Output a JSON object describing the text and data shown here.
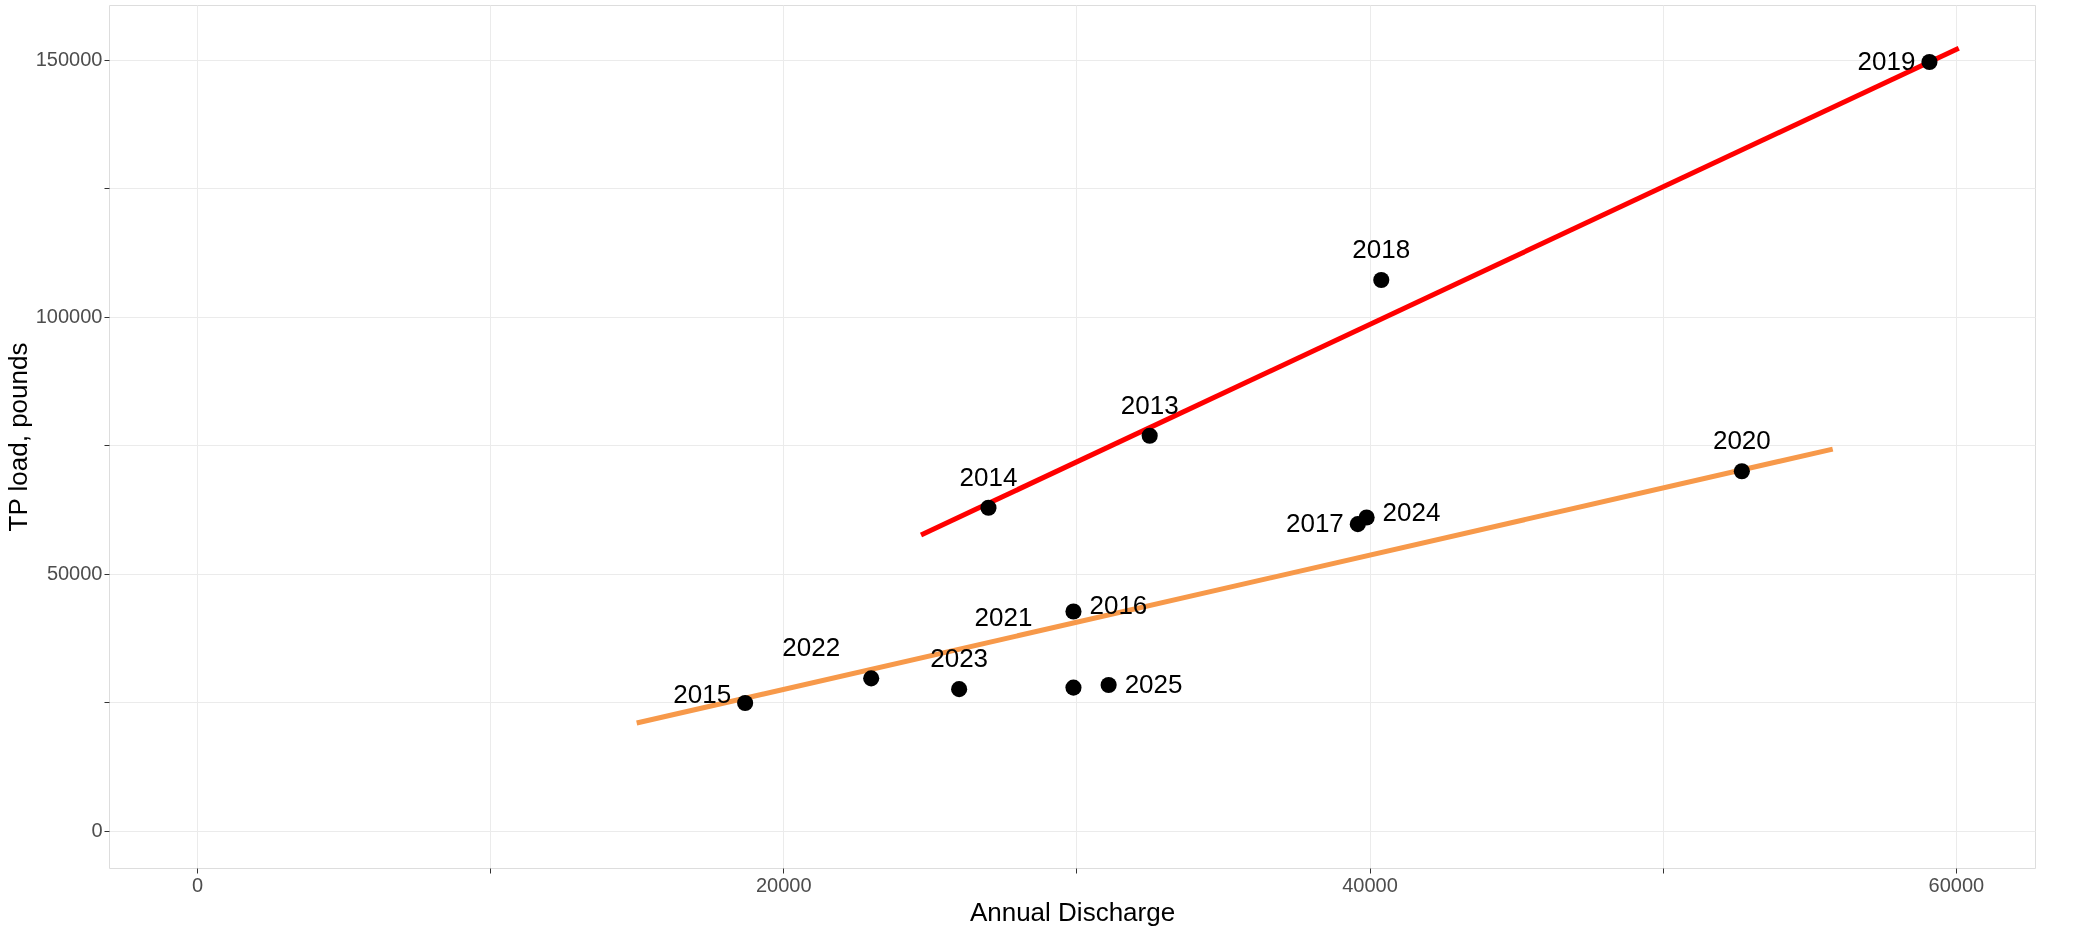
{
  "chart_data": {
    "type": "scatter",
    "xlabel": "Annual Discharge",
    "ylabel": "TP load, pounds",
    "x": [
      59100,
      40400,
      32500,
      27000,
      52700,
      39600,
      39900,
      29900,
      29900,
      31100,
      26000,
      23000,
      18700
    ],
    "values": [
      149600,
      107200,
      76900,
      62900,
      70000,
      59700,
      61000,
      42700,
      27900,
      28400,
      27600,
      29700,
      24900
    ],
    "color": "#000000",
    "marker": "circle",
    "series": [
      {
        "type": "line",
        "color": "#ff0000",
        "marker": "none",
        "x": [
          24700,
          60100
        ],
        "values": [
          57600,
          152300
        ]
      },
      {
        "type": "line",
        "color": "#f7994a",
        "marker": "none",
        "x": [
          15000,
          55800
        ],
        "values": [
          21000,
          74300
        ]
      }
    ],
    "annotations": [
      {
        "text": "2019",
        "x": 59100,
        "y": 149600
      },
      {
        "text": "2018",
        "x": 40400,
        "y": 107200
      },
      {
        "text": "2013",
        "x": 32500,
        "y": 76900
      },
      {
        "text": "2014",
        "x": 27000,
        "y": 62900
      },
      {
        "text": "2020",
        "x": 52700,
        "y": 70000
      },
      {
        "text": "2017",
        "x": 39600,
        "y": 59700
      },
      {
        "text": "2024",
        "x": 39900,
        "y": 61000
      },
      {
        "text": "2016",
        "x": 29900,
        "y": 42700
      },
      {
        "text": "2021",
        "x": 29900,
        "y": 27900
      },
      {
        "text": "2025",
        "x": 31100,
        "y": 28400
      },
      {
        "text": "2023",
        "x": 26000,
        "y": 27600
      },
      {
        "text": "2022",
        "x": 23000,
        "y": 29700
      },
      {
        "text": "2015",
        "x": 18700,
        "y": 24900
      }
    ],
    "xlim": [
      -3000,
      62700
    ],
    "ylim": [
      -7200,
      160700
    ],
    "xticks": [
      0,
      {
        "value": 10000,
        "label": null
      },
      20000,
      {
        "value": 30000,
        "label": null
      },
      40000,
      {
        "value": 50000,
        "label": null
      },
      60000
    ],
    "yticks": [
      0,
      {
        "value": 25000,
        "label": null
      },
      50000,
      {
        "value": 75000,
        "label": null
      },
      100000,
      {
        "value": 125000,
        "label": null
      },
      150000
    ],
    "grid": true,
    "line_style": "solid"
  }
}
